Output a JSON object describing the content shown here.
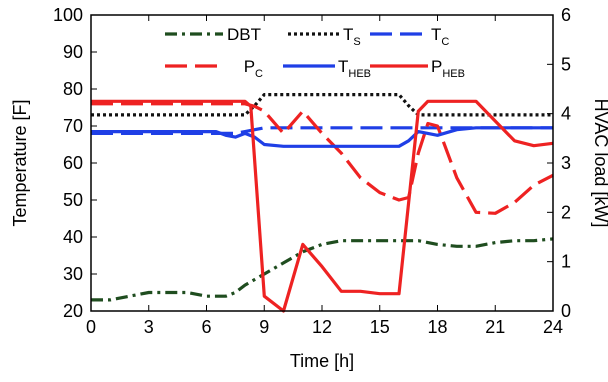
{
  "chart_data": {
    "type": "line",
    "xlabel": "Time [h]",
    "ylabel": "Temperature [F]",
    "y2label": "HVAC load [kW]",
    "xlim": [
      0,
      24
    ],
    "ylim": [
      20,
      100
    ],
    "y2lim": [
      0,
      6
    ],
    "xticks": [
      "0",
      "3",
      "6",
      "9",
      "12",
      "15",
      "18",
      "21",
      "24"
    ],
    "yticks": [
      "20",
      "30",
      "40",
      "50",
      "60",
      "70",
      "80",
      "90",
      "100"
    ],
    "y2ticks": [
      "0",
      "1",
      "2",
      "3",
      "4",
      "5",
      "6"
    ],
    "grid": false,
    "legend_position": "top",
    "series": [
      {
        "name": "DBT",
        "name_sub": "",
        "axis": "left",
        "color": "#1f4d1f",
        "dash": "12,5,3,5",
        "x": [
          0,
          1,
          2,
          3,
          4,
          5,
          6,
          7,
          7.5,
          8,
          9,
          10,
          11,
          12,
          13,
          14,
          15,
          16,
          17,
          18,
          19,
          20,
          21,
          22,
          23,
          24
        ],
        "y": [
          23,
          23,
          24,
          25,
          25,
          25,
          24,
          24,
          25,
          27,
          30,
          33,
          36,
          38,
          39,
          39,
          39,
          39,
          39,
          38,
          37.5,
          37.5,
          38.5,
          39,
          39,
          39.5
        ]
      },
      {
        "name": "T",
        "name_sub": "S",
        "axis": "left",
        "color": "#111111",
        "dash": "3,3",
        "x": [
          0,
          7.5,
          8,
          8.5,
          9,
          15.5,
          16,
          16.5,
          17,
          24
        ],
        "y": [
          73,
          73,
          73,
          75.5,
          78.5,
          78.5,
          78.5,
          75.5,
          73,
          73
        ]
      },
      {
        "name": "T",
        "name_sub": "C",
        "axis": "left",
        "color": "#1f3fe6",
        "dash": "22,8",
        "x": [
          0,
          6.5,
          7,
          7.5,
          8,
          8.5,
          9,
          9.5,
          16,
          16.5,
          17,
          24
        ],
        "y": [
          68,
          68,
          68,
          68,
          68.5,
          69,
          69.5,
          69.5,
          69.5,
          69.5,
          69.5,
          69.5
        ]
      },
      {
        "name": "P",
        "name_sub": "C",
        "axis": "right",
        "color": "#ee2222",
        "dash": "22,8",
        "x": [
          0,
          7.5,
          8,
          8.5,
          9,
          10,
          11,
          12,
          13,
          14,
          15,
          16,
          16.5,
          17,
          17.5,
          18,
          19,
          20,
          21,
          22,
          23,
          24
        ],
        "y": [
          4.2,
          4.2,
          4.2,
          4.15,
          4.05,
          3.6,
          4.05,
          3.6,
          3.2,
          2.7,
          2.4,
          2.25,
          2.3,
          3.2,
          3.8,
          3.75,
          2.7,
          2.0,
          1.98,
          2.2,
          2.55,
          2.75
        ]
      },
      {
        "name": "T",
        "name_sub": "HEB",
        "axis": "left",
        "color": "#1f3fe6",
        "dash": "",
        "x": [
          0,
          6,
          6.5,
          7,
          7.5,
          8,
          8.5,
          9,
          10,
          11,
          12,
          13,
          14,
          15,
          16,
          16.5,
          17,
          17.5,
          18,
          19,
          20,
          24
        ],
        "y": [
          68.5,
          68.5,
          68.5,
          67.5,
          67,
          68,
          67,
          65,
          64.5,
          64.5,
          64.5,
          64.5,
          64.5,
          64.5,
          64.5,
          66,
          68.5,
          68,
          67.5,
          69,
          69.5,
          69.5
        ]
      },
      {
        "name": "P",
        "name_sub": "HEB",
        "axis": "right",
        "color": "#ee2222",
        "dash": "",
        "x": [
          0,
          8,
          8.3,
          9,
          10,
          11,
          12,
          13,
          14,
          15,
          16,
          17,
          17.5,
          18,
          19,
          20,
          21,
          22,
          23,
          24
        ],
        "y": [
          4.25,
          4.25,
          4.15,
          0.3,
          0.0,
          1.35,
          0.9,
          0.4,
          0.4,
          0.35,
          0.35,
          4.05,
          4.25,
          4.25,
          4.25,
          4.25,
          3.85,
          3.45,
          3.35,
          3.4
        ]
      }
    ]
  }
}
